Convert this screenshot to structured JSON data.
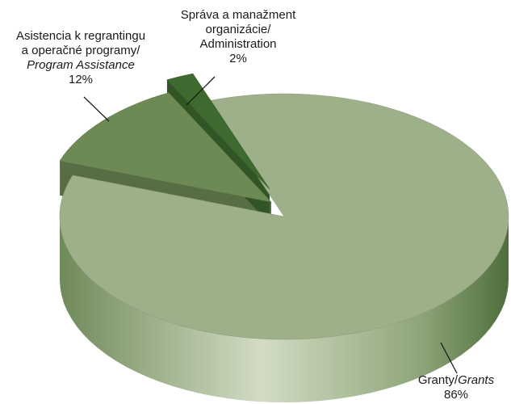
{
  "chart_data": {
    "type": "pie",
    "three_d": true,
    "exploded": true,
    "title": "",
    "slices": [
      {
        "label_sk_lines": [
          "Granty/"
        ],
        "label_en": "Grants",
        "pct_label": "86%",
        "value": 86,
        "color": "#9db08a"
      },
      {
        "label_sk_lines": [
          "Asistencia k regrantingu",
          "a operačné programy/"
        ],
        "label_en": "Program Assistance",
        "pct_label": "12%",
        "value": 12,
        "color": "#6d8a55"
      },
      {
        "label_sk_lines": [
          "Správa a manažment",
          "organizácie/"
        ],
        "label_en": "Administration",
        "pct_label": "2%",
        "value": 2,
        "color": "#3e6a30"
      }
    ],
    "colors": {
      "leader_line": "#1a1a1a",
      "label_text": "#1a1a1a"
    }
  }
}
